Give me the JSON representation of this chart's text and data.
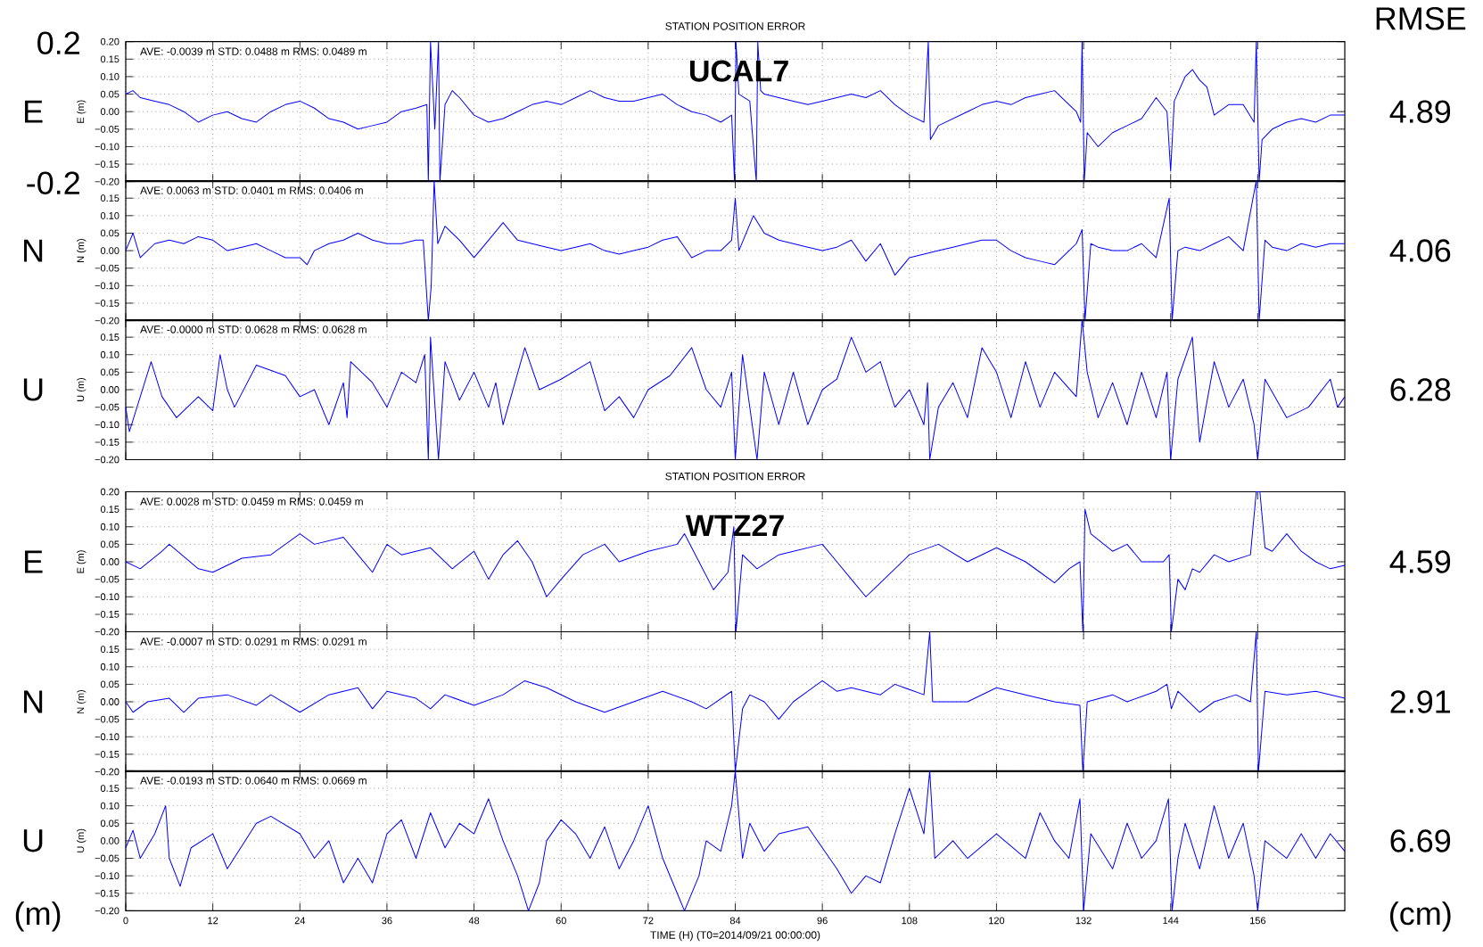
{
  "chart_data": [
    {
      "type": "line",
      "title": "STATION POSITION ERROR",
      "ylabel": "E (m)",
      "annotations": [
        "AVE: -0.0039 m STD: 0.0488 m RMS: 0.0489 m",
        "E",
        "4.89",
        "UCAL7",
        "RMSE",
        "0.2",
        "-0.2"
      ],
      "x": [
        0,
        1,
        2,
        4,
        6,
        8,
        10,
        12,
        14,
        16,
        18,
        20,
        22,
        24,
        26,
        28,
        30,
        32,
        34,
        36,
        38,
        40,
        41.5,
        41.7,
        42,
        42.6,
        43.1,
        43.3,
        44,
        45,
        46,
        48,
        50,
        52,
        54,
        56,
        58,
        60,
        62,
        64,
        66,
        68,
        70,
        72,
        74,
        76,
        78,
        80,
        82,
        83.5,
        83.9,
        84.1,
        84.5,
        86,
        86.9,
        87.1,
        87.5,
        88,
        90,
        92,
        94,
        96,
        98,
        100,
        102,
        104,
        106,
        108,
        110,
        110.6,
        110.9,
        112,
        114,
        116,
        118,
        120,
        122,
        124,
        126,
        128,
        130,
        131,
        131.6,
        131.8,
        132.1,
        132.5,
        134,
        136,
        138,
        140,
        142,
        143.5,
        144,
        144.5,
        146,
        147,
        148,
        149,
        150,
        152,
        154,
        155.5,
        155.8,
        156.2,
        156.6,
        158,
        160,
        162,
        164,
        166,
        168
      ],
      "series": [
        {
          "color": "#0000ff",
          "values": [
            0.05,
            0.06,
            0.04,
            0.03,
            0.02,
            0,
            -0.03,
            -0.01,
            0,
            -0.02,
            -0.03,
            0,
            0.02,
            0.03,
            0.01,
            -0.02,
            -0.03,
            -0.05,
            -0.04,
            -0.03,
            0,
            0.01,
            0.02,
            -0.2,
            0.2,
            -0.05,
            0.2,
            -0.2,
            0.02,
            0.06,
            0.04,
            -0.01,
            -0.03,
            -0.02,
            0,
            0.02,
            0.03,
            0.02,
            0.04,
            0.06,
            0.04,
            0.03,
            0.03,
            0.04,
            0.05,
            0.02,
            0,
            -0.01,
            -0.03,
            -0.01,
            -0.2,
            0.2,
            0.05,
            0.03,
            -0.2,
            0.2,
            0.06,
            0.05,
            0.04,
            0.03,
            0.02,
            0.03,
            0.04,
            0.05,
            0.04,
            0.06,
            0.02,
            -0.01,
            -0.03,
            0.2,
            -0.08,
            -0.04,
            -0.02,
            0,
            0.02,
            0.03,
            0.02,
            0.04,
            0.05,
            0.06,
            0.02,
            0,
            -0.03,
            0.2,
            -0.2,
            -0.06,
            -0.1,
            -0.06,
            -0.04,
            -0.02,
            0.04,
            0,
            -0.17,
            0.03,
            0.1,
            0.12,
            0.09,
            0.07,
            -0.01,
            0.02,
            0.02,
            -0.03,
            0.2,
            -0.2,
            -0.08,
            -0.05,
            -0.03,
            -0.02,
            -0.03,
            -0.01,
            -0.01
          ]
        }
      ],
      "xlim": [
        0,
        168
      ],
      "ylim": [
        -0.2,
        0.2
      ],
      "xticks": [
        0,
        12,
        24,
        36,
        48,
        60,
        72,
        84,
        96,
        108,
        120,
        132,
        144,
        156
      ],
      "yticks": [
        {
          "value": 0.2,
          "label": "0.20"
        },
        {
          "value": 0.15,
          "label": "0.15"
        },
        {
          "value": 0.1,
          "label": "0.10"
        },
        {
          "value": 0.05,
          "label": "0.05"
        },
        {
          "value": 0,
          "label": "0.00"
        },
        {
          "value": -0.05,
          "label": "−0.05"
        },
        {
          "value": -0.1,
          "label": "−0.10"
        },
        {
          "value": -0.15,
          "label": "−0.15"
        },
        {
          "value": -0.2,
          "label": "−0.20"
        }
      ],
      "grid": true,
      "line_style": "solid",
      "tick_labels": "y"
    },
    {
      "type": "line",
      "ylabel": "N (m)",
      "annotations": [
        "AVE: 0.0063 m STD: 0.0401 m RMS: 0.0406 m",
        "N",
        "4.06"
      ],
      "x": [
        0,
        1,
        2,
        4,
        6,
        8,
        10,
        12,
        14,
        16,
        18,
        20,
        22,
        24,
        25,
        26,
        28,
        30,
        32,
        34,
        36,
        38,
        40,
        41,
        41.7,
        42.1,
        42.5,
        43,
        44,
        46,
        48,
        50,
        52,
        54,
        56,
        58,
        60,
        62,
        64,
        66,
        68,
        70,
        72,
        74,
        76,
        78,
        80,
        82,
        83.5,
        84,
        84.5,
        86.5,
        88,
        90,
        92,
        94,
        96,
        98,
        100,
        102,
        104,
        106,
        108,
        110,
        112,
        114,
        116,
        118,
        120,
        122,
        124,
        126,
        128,
        130,
        131,
        131.8,
        132.2,
        133,
        134,
        136,
        138,
        140,
        142,
        143.8,
        144.2,
        145,
        146,
        148,
        150,
        152,
        154,
        155.8,
        156.2,
        157,
        158,
        160,
        162,
        164,
        166,
        168
      ],
      "series": [
        {
          "color": "#0000ff",
          "values": [
            0,
            0.05,
            -0.02,
            0.02,
            0.03,
            0.02,
            0.04,
            0.03,
            0,
            0.01,
            0.02,
            0,
            -0.02,
            -0.02,
            -0.04,
            0,
            0.02,
            0.03,
            0.05,
            0.03,
            0.02,
            0.02,
            0.03,
            0.03,
            -0.2,
            -0.1,
            0.2,
            0.02,
            0.07,
            0.03,
            -0.02,
            0.03,
            0.08,
            0.03,
            0.02,
            0.01,
            0,
            0.01,
            0.02,
            0,
            -0.01,
            0,
            0.01,
            0.03,
            0.04,
            -0.02,
            0,
            0,
            0.03,
            0.15,
            0,
            0.1,
            0.05,
            0.03,
            0.02,
            0.01,
            0,
            0.01,
            0.03,
            -0.03,
            0.02,
            -0.07,
            -0.02,
            -0.01,
            0,
            0.01,
            0.02,
            0.03,
            0.03,
            0,
            -0.02,
            -0.03,
            -0.04,
            0,
            0.02,
            0.06,
            -0.2,
            0.02,
            0.01,
            0,
            0,
            0.02,
            -0.02,
            0.15,
            -0.2,
            0,
            0.01,
            0,
            0.02,
            0.04,
            0,
            0.2,
            -0.2,
            0.03,
            0.01,
            0,
            0.02,
            0.01,
            0.02,
            0.02
          ]
        }
      ],
      "xlim": [
        0,
        168
      ],
      "ylim": [
        -0.2,
        0.2
      ],
      "xticks": [
        0,
        12,
        24,
        36,
        48,
        60,
        72,
        84,
        96,
        108,
        120,
        132,
        144,
        156
      ],
      "yticks": [
        {
          "value": 0.2,
          "label": null
        },
        {
          "value": 0.15,
          "label": "0.15"
        },
        {
          "value": 0.1,
          "label": "0.10"
        },
        {
          "value": 0.05,
          "label": "0.05"
        },
        {
          "value": 0,
          "label": "0.00"
        },
        {
          "value": -0.05,
          "label": "−0.05"
        },
        {
          "value": -0.1,
          "label": "−0.10"
        },
        {
          "value": -0.15,
          "label": "−0.15"
        },
        {
          "value": -0.2,
          "label": "−0.20"
        }
      ],
      "grid": true,
      "line_style": "solid",
      "tick_labels": "y"
    },
    {
      "type": "line",
      "ylabel": "U (m)",
      "annotations": [
        "AVE: -0.0000 m STD: 0.0628 m RMS: 0.0628 m",
        "U",
        "6.28"
      ],
      "x": [
        0,
        0.5,
        2,
        3.5,
        5,
        7,
        10,
        12,
        13,
        14,
        15,
        18,
        22,
        24,
        26,
        28,
        30,
        30.5,
        31,
        34,
        36,
        38,
        40,
        41.2,
        41.7,
        42,
        43.1,
        44,
        46,
        48,
        50,
        51,
        52,
        55,
        57,
        60,
        64,
        66,
        68,
        70,
        72,
        75,
        78,
        80,
        82,
        83.5,
        84,
        85,
        87,
        88,
        90,
        92,
        94,
        96,
        98,
        100,
        102,
        104,
        106,
        108,
        110,
        110.5,
        110.8,
        112,
        114,
        116,
        118,
        120,
        122,
        124,
        126,
        128,
        131,
        131.8,
        132.5,
        134,
        136,
        138,
        140,
        142,
        143.5,
        144,
        145,
        147,
        148,
        150,
        152,
        154,
        155.5,
        156,
        157,
        160,
        163,
        166,
        167,
        168
      ],
      "series": [
        {
          "color": "#0000ff",
          "values": [
            -0.05,
            -0.12,
            -0.02,
            0.08,
            -0.02,
            -0.08,
            -0.02,
            -0.06,
            0.1,
            0,
            -0.05,
            0.07,
            0.04,
            -0.02,
            0,
            -0.1,
            0.02,
            -0.08,
            0.08,
            0.02,
            -0.05,
            0.05,
            0.02,
            0.1,
            -0.2,
            0.15,
            -0.2,
            0.08,
            -0.03,
            0.05,
            -0.05,
            0.02,
            -0.1,
            0.12,
            0,
            0.03,
            0.08,
            -0.06,
            -0.02,
            -0.08,
            0,
            0.04,
            0.12,
            0,
            -0.05,
            0.05,
            -0.2,
            0.1,
            -0.2,
            0.05,
            -0.1,
            0.05,
            -0.1,
            0,
            0.03,
            0.15,
            0.05,
            0.08,
            -0.05,
            0,
            -0.1,
            0.02,
            -0.2,
            -0.05,
            0.02,
            -0.08,
            0.12,
            0.05,
            -0.08,
            0.08,
            -0.05,
            0.05,
            -0.02,
            0.2,
            0.05,
            -0.08,
            0.02,
            -0.1,
            0.05,
            -0.08,
            0.05,
            -0.2,
            0.03,
            0.15,
            -0.15,
            0.08,
            -0.05,
            0.03,
            -0.1,
            -0.2,
            0.03,
            -0.08,
            -0.05,
            0.03,
            -0.05,
            -0.02
          ]
        }
      ],
      "xlim": [
        0,
        168
      ],
      "ylim": [
        -0.2,
        0.2
      ],
      "xticks": [
        0,
        12,
        24,
        36,
        48,
        60,
        72,
        84,
        96,
        108,
        120,
        132,
        144,
        156
      ],
      "yticks": [
        {
          "value": 0.2,
          "label": null
        },
        {
          "value": 0.15,
          "label": "0.15"
        },
        {
          "value": 0.1,
          "label": "0.10"
        },
        {
          "value": 0.05,
          "label": "0.05"
        },
        {
          "value": 0,
          "label": "0.00"
        },
        {
          "value": -0.05,
          "label": "−0.05"
        },
        {
          "value": -0.1,
          "label": "−0.10"
        },
        {
          "value": -0.15,
          "label": "−0.15"
        },
        {
          "value": -0.2,
          "label": "−0.20"
        }
      ],
      "grid": true,
      "line_style": "solid",
      "tick_labels": "y"
    },
    {
      "type": "line",
      "title": "STATION POSITION ERROR",
      "ylabel": "E (m)",
      "annotations": [
        "AVE: 0.0028 m STD: 0.0459 m RMS: 0.0459 m",
        "E",
        "4.59",
        "WTZ27"
      ],
      "x": [
        0,
        2,
        5,
        6,
        10,
        12,
        16,
        20,
        24,
        26,
        30,
        32,
        34,
        36,
        38,
        42,
        45,
        48,
        50,
        52,
        54,
        56,
        58,
        60,
        63,
        66,
        68,
        72,
        76,
        77,
        79,
        81,
        83,
        83.8,
        84.1,
        85,
        87,
        90,
        92,
        96,
        98,
        100,
        102,
        104,
        108,
        112,
        116,
        120,
        124,
        126,
        128,
        130,
        131.5,
        131.9,
        132.2,
        133,
        136,
        138,
        140,
        143,
        143.8,
        144.1,
        145,
        146,
        147,
        148,
        150,
        152,
        155,
        155.8,
        156.3,
        157,
        158,
        160,
        162,
        164,
        166,
        168
      ],
      "series": [
        {
          "color": "#0000ff",
          "values": [
            0,
            -0.02,
            0.03,
            0.05,
            -0.02,
            -0.03,
            0.01,
            0.02,
            0.08,
            0.05,
            0.07,
            0.02,
            -0.03,
            0.05,
            0.02,
            0.04,
            -0.02,
            0.03,
            -0.05,
            0.02,
            0.06,
            0,
            -0.1,
            -0.05,
            0.02,
            0.05,
            0,
            0.03,
            0.05,
            0.08,
            0,
            -0.08,
            -0.03,
            0.1,
            -0.2,
            0.02,
            -0.02,
            0.02,
            0.03,
            0.05,
            0,
            -0.05,
            -0.1,
            -0.06,
            0.02,
            0.05,
            0,
            0.04,
            0,
            -0.03,
            -0.06,
            -0.02,
            0,
            -0.2,
            0.15,
            0.08,
            0.03,
            0.05,
            0,
            0,
            0.02,
            -0.2,
            -0.05,
            -0.08,
            -0.02,
            -0.03,
            0.02,
            0,
            0.02,
            0.2,
            0.2,
            0.04,
            0.03,
            0.08,
            0.03,
            0,
            -0.02,
            -0.01
          ]
        }
      ],
      "xlim": [
        0,
        168
      ],
      "ylim": [
        -0.2,
        0.2
      ],
      "xticks": [
        0,
        12,
        24,
        36,
        48,
        60,
        72,
        84,
        96,
        108,
        120,
        132,
        144,
        156
      ],
      "yticks": [
        {
          "value": 0.2,
          "label": "0.20"
        },
        {
          "value": 0.15,
          "label": "0.15"
        },
        {
          "value": 0.1,
          "label": "0.10"
        },
        {
          "value": 0.05,
          "label": "0.05"
        },
        {
          "value": 0,
          "label": "0.00"
        },
        {
          "value": -0.05,
          "label": "−0.05"
        },
        {
          "value": -0.1,
          "label": "−0.10"
        },
        {
          "value": -0.15,
          "label": "−0.15"
        },
        {
          "value": -0.2,
          "label": "−0.20"
        }
      ],
      "grid": true,
      "line_style": "solid",
      "tick_labels": "y"
    },
    {
      "type": "line",
      "ylabel": "N (m)",
      "annotations": [
        "AVE: -0.0007 m STD: 0.0291 m RMS: 0.0291 m",
        "N",
        "2.91"
      ],
      "x": [
        0,
        1,
        3,
        6,
        8,
        10,
        14,
        18,
        20,
        24,
        28,
        32,
        34,
        36,
        40,
        42,
        44,
        48,
        52,
        55,
        58,
        62,
        66,
        70,
        74,
        78,
        80,
        83.5,
        84,
        85,
        86,
        88,
        90,
        92,
        94,
        96,
        98,
        100,
        104,
        106,
        110,
        110.8,
        111.2,
        116,
        120,
        124,
        128,
        131.5,
        131.9,
        132.5,
        136,
        138,
        142,
        143.5,
        144.1,
        145,
        148,
        150,
        153,
        155,
        155.8,
        156.1,
        157,
        160,
        164,
        168
      ],
      "series": [
        {
          "color": "#0000ff",
          "values": [
            0,
            -0.03,
            0,
            0.01,
            -0.03,
            0.01,
            0.02,
            -0.01,
            0.02,
            -0.03,
            0.02,
            0.04,
            -0.02,
            0.03,
            0.01,
            -0.02,
            0.02,
            -0.01,
            0.02,
            0.06,
            0.04,
            0,
            -0.03,
            0,
            0.03,
            0,
            -0.02,
            0.03,
            -0.2,
            -0.02,
            0.02,
            0,
            -0.05,
            0,
            0.03,
            0.06,
            0.03,
            0.04,
            0.02,
            0.05,
            0.02,
            0.2,
            0,
            0,
            0.04,
            0.02,
            0,
            -0.01,
            -0.2,
            0,
            0.02,
            0,
            0.03,
            0.05,
            -0.02,
            0.03,
            -0.03,
            0,
            0.02,
            0,
            0.2,
            -0.2,
            0.03,
            0.02,
            0.03,
            0.01
          ]
        }
      ],
      "xlim": [
        0,
        168
      ],
      "ylim": [
        -0.2,
        0.2
      ],
      "xticks": [
        0,
        12,
        24,
        36,
        48,
        60,
        72,
        84,
        96,
        108,
        120,
        132,
        144,
        156
      ],
      "yticks": [
        {
          "value": 0.2,
          "label": null
        },
        {
          "value": 0.15,
          "label": "0.15"
        },
        {
          "value": 0.1,
          "label": "0.10"
        },
        {
          "value": 0.05,
          "label": "0.05"
        },
        {
          "value": 0,
          "label": "0.00"
        },
        {
          "value": -0.05,
          "label": "−0.05"
        },
        {
          "value": -0.1,
          "label": "−0.10"
        },
        {
          "value": -0.15,
          "label": "−0.15"
        },
        {
          "value": -0.2,
          "label": "−0.20"
        }
      ],
      "grid": true,
      "line_style": "solid",
      "tick_labels": "y"
    },
    {
      "type": "line",
      "ylabel": "U (m)",
      "xlabel": "TIME (H) (T0=2014/09/21 00:00:00)",
      "annotations": [
        "AVE: -0.0193 m STD: 0.0640 m RMS: 0.0669 m",
        "U",
        "6.69",
        "(m)",
        "(cm)"
      ],
      "x": [
        0,
        1,
        2,
        4,
        5.5,
        6,
        7.5,
        9,
        12,
        14,
        18,
        20,
        24,
        26,
        28,
        30,
        32,
        34,
        36,
        38,
        40,
        42,
        44,
        46,
        48,
        50,
        52,
        54,
        55.5,
        57,
        58,
        60,
        62,
        64,
        66,
        68,
        70,
        72,
        74,
        76,
        77,
        79,
        80,
        82,
        83.5,
        84,
        85,
        86,
        88,
        90,
        94,
        96,
        98,
        100,
        102,
        104,
        106,
        108,
        110,
        110.8,
        111.5,
        114,
        116,
        120,
        124,
        126,
        128,
        130,
        131.5,
        132,
        133,
        136,
        138,
        140,
        142,
        143.7,
        144.2,
        145,
        146,
        148,
        150,
        152,
        154,
        155.5,
        156,
        157,
        160,
        162,
        164,
        166,
        168
      ],
      "series": [
        {
          "color": "#0000ff",
          "values": [
            -0.02,
            0.03,
            -0.05,
            0.02,
            0.1,
            -0.05,
            -0.13,
            -0.02,
            0.02,
            -0.08,
            0.05,
            0.07,
            0.02,
            -0.05,
            0,
            -0.12,
            -0.05,
            -0.12,
            0.02,
            0.06,
            -0.05,
            0.08,
            -0.02,
            0.05,
            0.02,
            0.12,
            0,
            -0.1,
            -0.2,
            -0.12,
            0,
            0.06,
            0.02,
            -0.05,
            0.04,
            -0.08,
            0,
            0.1,
            -0.05,
            -0.15,
            -0.2,
            -0.1,
            0,
            -0.03,
            0.1,
            0.2,
            -0.05,
            0.05,
            -0.03,
            0.02,
            0.04,
            -0.02,
            -0.08,
            -0.15,
            -0.1,
            -0.12,
            0.02,
            0.15,
            0.02,
            0.2,
            -0.05,
            0,
            -0.05,
            0.02,
            -0.05,
            0.08,
            0,
            -0.05,
            0.12,
            -0.2,
            0.02,
            -0.08,
            0.05,
            -0.05,
            0,
            0.12,
            -0.2,
            -0.05,
            0.05,
            -0.08,
            0.1,
            -0.05,
            0.05,
            -0.1,
            -0.2,
            0,
            -0.05,
            0.02,
            -0.05,
            0.02,
            -0.03
          ]
        }
      ],
      "xlim": [
        0,
        168
      ],
      "ylim": [
        -0.2,
        0.2
      ],
      "xticks": [
        0,
        12,
        24,
        36,
        48,
        60,
        72,
        84,
        96,
        108,
        120,
        132,
        144,
        156
      ],
      "yticks": [
        {
          "value": 0.2,
          "label": null
        },
        {
          "value": 0.15,
          "label": "0.15"
        },
        {
          "value": 0.1,
          "label": "0.10"
        },
        {
          "value": 0.05,
          "label": "0.05"
        },
        {
          "value": 0,
          "label": "0.00"
        },
        {
          "value": -0.05,
          "label": "−0.05"
        },
        {
          "value": -0.1,
          "label": "−0.10"
        },
        {
          "value": -0.15,
          "label": "−0.15"
        },
        {
          "value": -0.2,
          "label": "−0.20"
        }
      ],
      "grid": true,
      "line_style": "solid"
    }
  ]
}
